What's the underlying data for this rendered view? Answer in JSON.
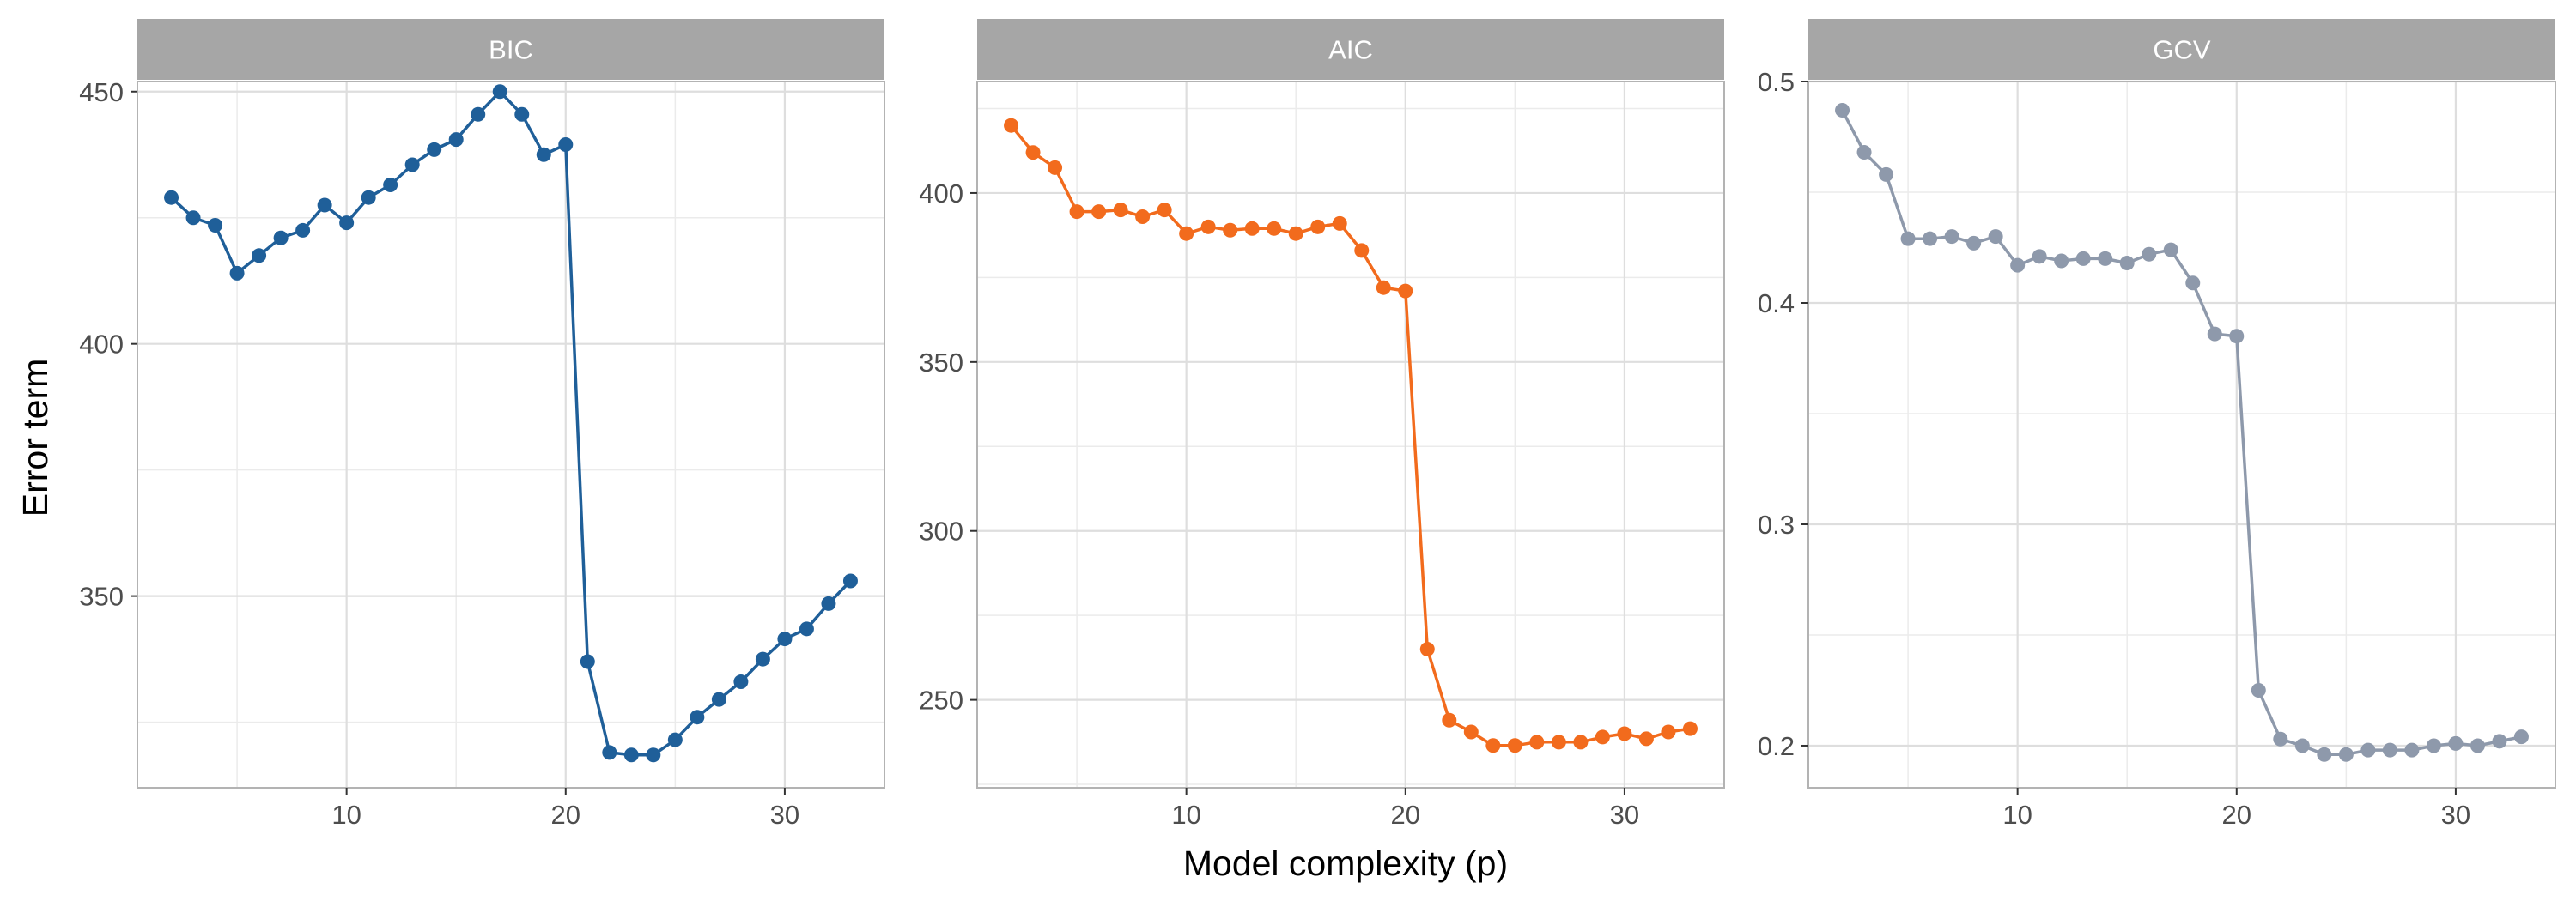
{
  "chart_data": {
    "type": "line",
    "xlabel": "Model complexity (p)",
    "ylabel": "Error term",
    "grid": true,
    "x_ticks": [
      10,
      20,
      30
    ],
    "x": [
      2,
      3,
      4,
      5,
      6,
      7,
      8,
      9,
      10,
      11,
      12,
      13,
      14,
      15,
      16,
      17,
      18,
      19,
      20,
      21,
      22,
      23,
      24,
      25,
      26,
      27,
      28,
      29,
      30,
      31,
      32,
      33
    ],
    "panels": [
      {
        "title": "BIC",
        "color": "#1F5F99",
        "ylim": [
          312,
          452
        ],
        "y_ticks": [
          350,
          400,
          450
        ],
        "values": [
          429,
          425,
          423.5,
          414,
          417.5,
          421,
          422.5,
          427.5,
          424,
          429,
          431.5,
          435.5,
          438.5,
          440.5,
          445.5,
          450,
          445.5,
          437.5,
          439.5,
          337,
          319,
          318.5,
          318.5,
          321.5,
          326,
          329.5,
          333,
          337.5,
          341.5,
          343.5,
          348.5,
          353
        ]
      },
      {
        "title": "AIC",
        "color": "#F26B1D",
        "ylim": [
          224,
          433
        ],
        "y_ticks": [
          250,
          300,
          350,
          400
        ],
        "values": [
          420,
          412,
          407.5,
          394.5,
          394.5,
          395,
          393,
          395,
          388,
          390,
          389,
          389.5,
          389.5,
          388,
          390,
          391,
          383,
          372,
          371,
          265,
          244,
          240.5,
          236.5,
          236.5,
          237.5,
          237.5,
          237.5,
          239,
          240,
          238.5,
          240.5,
          241.5
        ]
      },
      {
        "title": "GCV",
        "color": "#8E99AB",
        "ylim": [
          0.181,
          0.5
        ],
        "y_ticks": [
          0.2,
          0.3,
          0.4,
          0.5
        ],
        "values": [
          0.487,
          0.468,
          0.458,
          0.429,
          0.429,
          0.43,
          0.427,
          0.43,
          0.417,
          0.421,
          0.419,
          0.42,
          0.42,
          0.418,
          0.422,
          0.424,
          0.409,
          0.386,
          0.385,
          0.225,
          0.203,
          0.2,
          0.196,
          0.196,
          0.198,
          0.198,
          0.198,
          0.2,
          0.201,
          0.2,
          0.202,
          0.204
        ]
      }
    ]
  }
}
